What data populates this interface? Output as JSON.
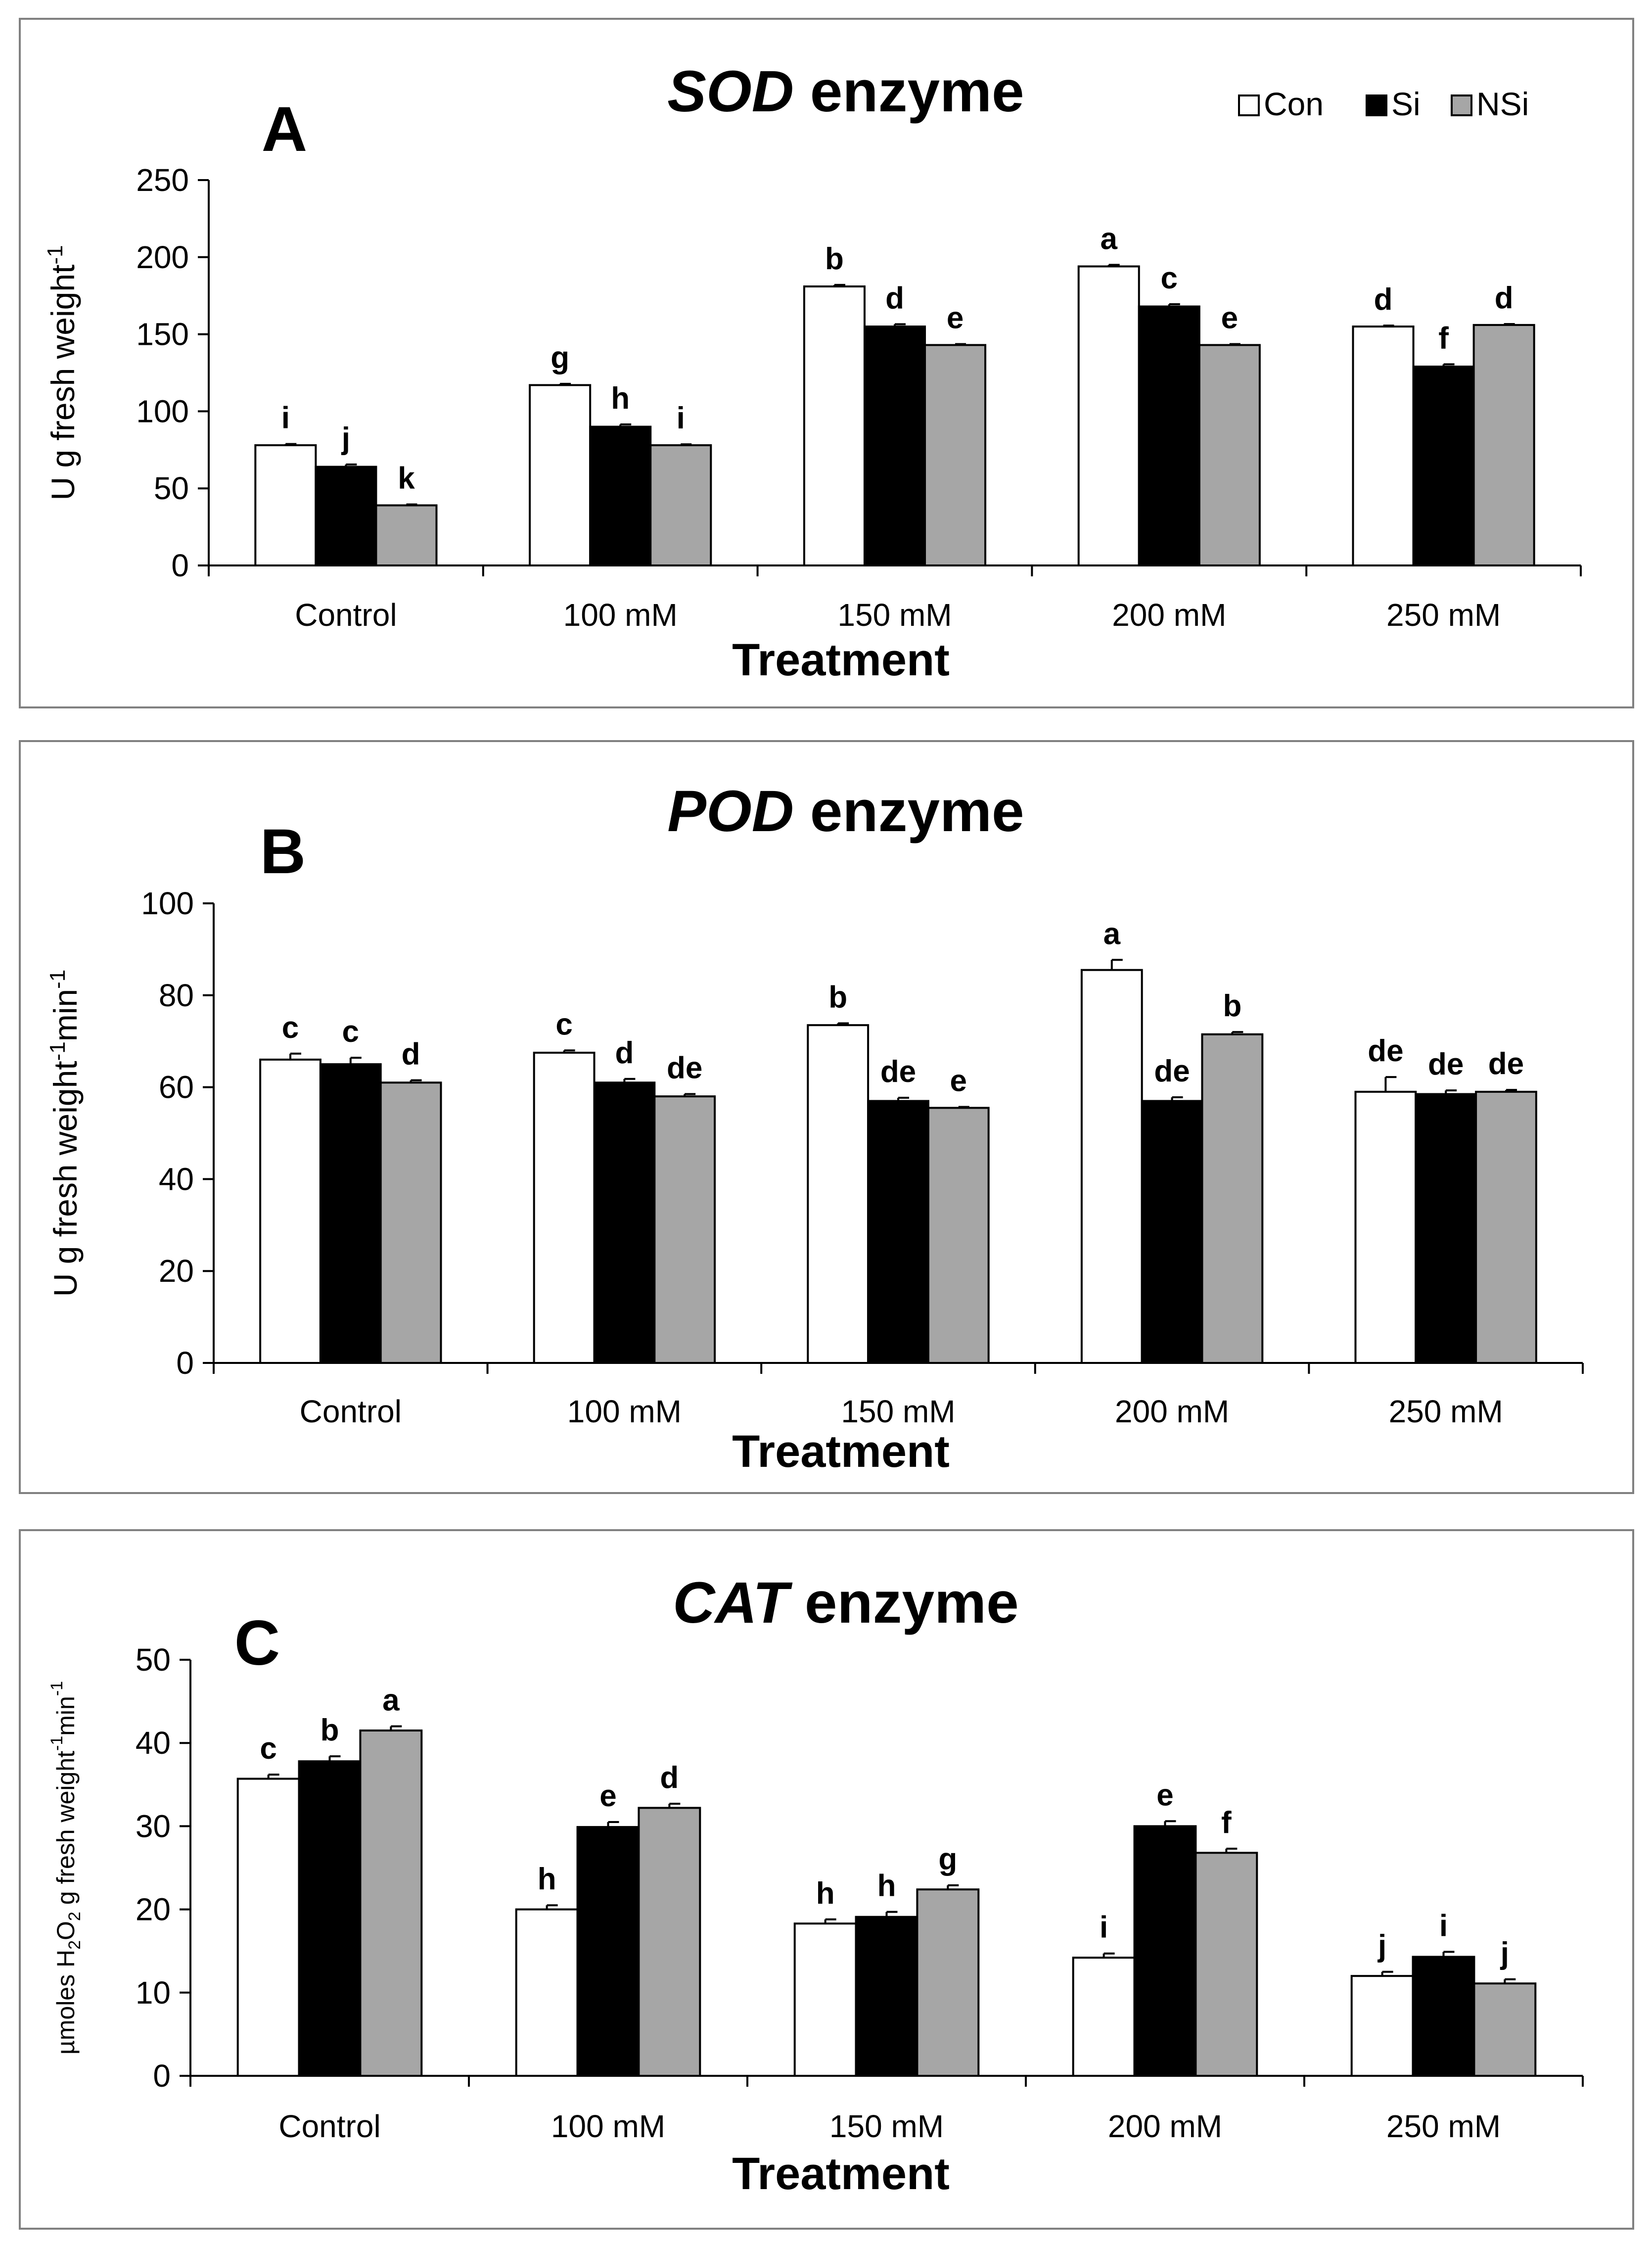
{
  "chart_data": [
    {
      "type": "bar",
      "panel_letter": "A",
      "title_italic": "SOD",
      "title_rest": " enzyme",
      "title": "SOD enzyme",
      "xlabel": "Treatment",
      "ylabel_main": "U g fresh weight",
      "ylabel_sup": "-1",
      "ylabel_tail": "",
      "ylim": [
        0,
        250
      ],
      "yticks": [
        0,
        50,
        100,
        150,
        200,
        250
      ],
      "categories": [
        "Control",
        "100 mM",
        "150 mM",
        "200 mM",
        "250 mM"
      ],
      "legend": true,
      "series": [
        {
          "name": "Con",
          "color": "#ffffff",
          "values": [
            78,
            117,
            181,
            194,
            155
          ],
          "errors": [
            0.8,
            0.8,
            1,
            1,
            0.6
          ],
          "letters": [
            "i",
            "g",
            "b",
            "a",
            "d"
          ]
        },
        {
          "name": "Si",
          "color": "#000000",
          "values": [
            64,
            90,
            155,
            168,
            129
          ],
          "errors": [
            1.5,
            1.5,
            1.5,
            1.5,
            1.5
          ],
          "letters": [
            "j",
            "h",
            "d",
            "c",
            "f"
          ]
        },
        {
          "name": "NSi",
          "color": "#a6a6a6",
          "values": [
            39,
            78,
            143,
            143,
            156
          ],
          "errors": [
            0.6,
            0.6,
            0.6,
            0.6,
            0.6
          ],
          "letters": [
            "k",
            "i",
            "e",
            "e",
            "d"
          ]
        }
      ]
    },
    {
      "type": "bar",
      "panel_letter": "B",
      "title_italic": "POD",
      "title_rest": " enzyme",
      "title": "POD enzyme",
      "xlabel": "Treatment",
      "ylabel_main": "U g fresh weight",
      "ylabel_sup": "-1",
      "ylabel_tail": "min",
      "ylabel_sup2": "-1",
      "ylim": [
        0,
        100
      ],
      "yticks": [
        0,
        20,
        40,
        60,
        80,
        100
      ],
      "categories": [
        "Control",
        "100 mM",
        "150 mM",
        "200 mM",
        "250 mM"
      ],
      "legend": false,
      "series": [
        {
          "name": "Con",
          "color": "#ffffff",
          "values": [
            66,
            67.5,
            73.5,
            85.5,
            59
          ],
          "errors": [
            1.3,
            0.5,
            0.4,
            2.2,
            3.2
          ],
          "letters": [
            "c",
            "c",
            "b",
            "a",
            "de"
          ]
        },
        {
          "name": "Si",
          "color": "#000000",
          "values": [
            65,
            61,
            57,
            57,
            58.5
          ],
          "errors": [
            1.4,
            0.8,
            0.7,
            0.8,
            0.8
          ],
          "letters": [
            "c",
            "d",
            "de",
            "de",
            "de"
          ]
        },
        {
          "name": "NSi",
          "color": "#a6a6a6",
          "values": [
            61,
            58,
            55.5,
            71.5,
            59
          ],
          "errors": [
            0.5,
            0.5,
            0.2,
            0.5,
            0.4
          ],
          "letters": [
            "d",
            "de",
            "e",
            "b",
            "de"
          ]
        }
      ]
    },
    {
      "type": "bar",
      "panel_letter": "C",
      "title_italic": "CAT",
      "title_rest": " enzyme",
      "title": "CAT enzyme",
      "xlabel": "Treatment",
      "ylabel_main": "µmoles H",
      "ylabel_sub": "2",
      "ylabel_mid": "O",
      "ylabel_sub2": "2",
      "ylabel_rest": "  g fresh weight",
      "ylabel_sup": "-1",
      "ylabel_tail": "min",
      "ylabel_sup2": "-1",
      "ylim": [
        0,
        50
      ],
      "yticks": [
        0,
        10,
        20,
        30,
        40,
        50
      ],
      "categories": [
        "Control",
        "100 mM",
        "150 mM",
        "200 mM",
        "250 mM"
      ],
      "legend": false,
      "series": [
        {
          "name": "Con",
          "color": "#ffffff",
          "values": [
            35.7,
            20,
            18.3,
            14.2,
            12
          ],
          "errors": [
            0.5,
            0.5,
            0.5,
            0.5,
            0.5
          ],
          "letters": [
            "c",
            "h",
            "h",
            "i",
            "j"
          ]
        },
        {
          "name": "Si",
          "color": "#000000",
          "values": [
            37.8,
            29.9,
            19.1,
            30,
            14.3
          ],
          "errors": [
            0.6,
            0.6,
            0.6,
            0.6,
            0.6
          ],
          "letters": [
            "b",
            "e",
            "h",
            "e",
            "i"
          ]
        },
        {
          "name": "NSi",
          "color": "#a6a6a6",
          "values": [
            41.5,
            32.2,
            22.4,
            26.8,
            11.1
          ],
          "errors": [
            0.5,
            0.5,
            0.5,
            0.5,
            0.5
          ],
          "letters": [
            "a",
            "d",
            "g",
            "f",
            "j"
          ]
        }
      ]
    }
  ]
}
